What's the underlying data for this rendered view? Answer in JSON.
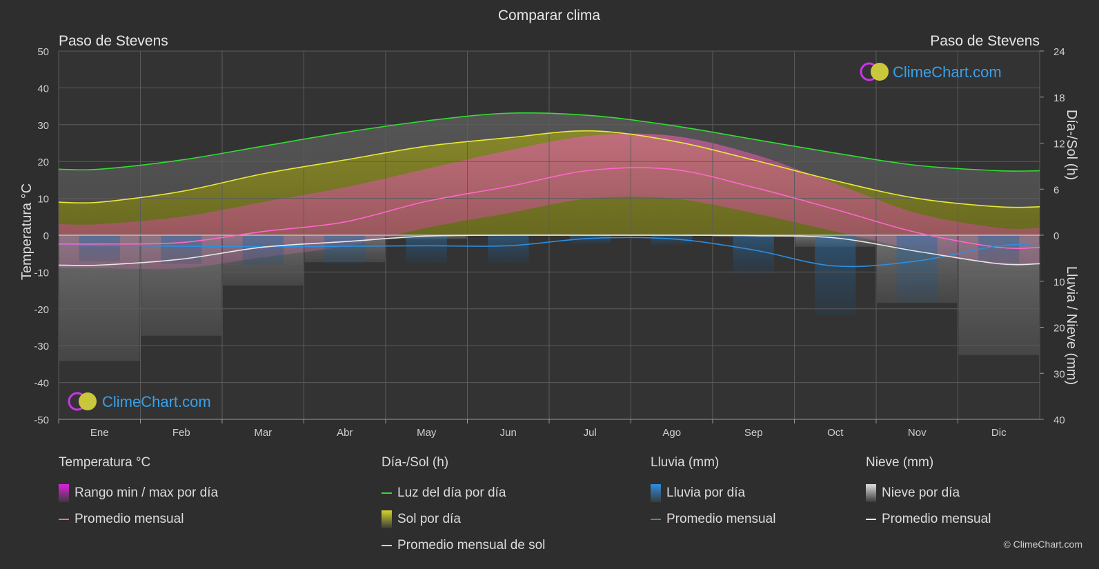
{
  "chart_data": {
    "type": "area",
    "title": "Comparar clima",
    "location_left": "Paso de Stevens",
    "location_right": "Paso de Stevens",
    "categories": [
      "Ene",
      "Feb",
      "Mar",
      "Abr",
      "May",
      "Jun",
      "Jul",
      "Ago",
      "Sep",
      "Oct",
      "Nov",
      "Dic"
    ],
    "y_left": {
      "label": "Temperatura °C",
      "range": [
        -50,
        50
      ],
      "ticks": [
        50,
        40,
        30,
        20,
        10,
        0,
        -10,
        -20,
        -30,
        -40,
        -50
      ]
    },
    "y_right_top": {
      "label": "Día-/Sol (h)",
      "range": [
        0,
        24
      ],
      "ticks": [
        24,
        18,
        12,
        6,
        0
      ]
    },
    "y_right_bottom": {
      "label": "Lluvia / Nieve (mm)",
      "range": [
        0,
        40
      ],
      "ticks": [
        10,
        20,
        30,
        40
      ]
    },
    "series": [
      {
        "name": "Luz del día por día",
        "axis": "daylight_h",
        "color": "#33dd33",
        "values": [
          8.6,
          9.8,
          11.6,
          13.4,
          14.9,
          15.9,
          15.6,
          14.3,
          12.5,
          10.7,
          9.1,
          8.4
        ]
      },
      {
        "name": "Promedio mensual de sol",
        "axis": "daylight_h",
        "color": "#e8e83a",
        "values": [
          4.3,
          5.7,
          8.0,
          9.8,
          11.6,
          12.7,
          13.6,
          12.3,
          9.8,
          7.1,
          4.8,
          3.7
        ]
      },
      {
        "name": "Promedio mensual",
        "group": "Temperatura °C",
        "axis": "temp_c",
        "color": "#ff66cc",
        "values": [
          -2.4,
          -2.0,
          1.0,
          3.6,
          9.2,
          13.2,
          17.6,
          17.9,
          13.0,
          7.0,
          0.7,
          -3.3
        ]
      },
      {
        "name": "Promedio mensual",
        "group": "Lluvia (mm)",
        "axis": "precip_mm",
        "color": "#2d8ee0",
        "values": [
          2.2,
          2.4,
          2.5,
          2.4,
          2.3,
          2.3,
          0.7,
          0.8,
          3.2,
          6.7,
          5.6,
          2.3
        ]
      },
      {
        "name": "Promedio mensual",
        "group": "Nieve (mm)",
        "axis": "precip_mm",
        "color": "#e8e8e8",
        "values": [
          6.5,
          5.2,
          2.6,
          1.4,
          0.2,
          0.0,
          0.0,
          0.0,
          0.1,
          0.6,
          3.5,
          6.2
        ]
      }
    ],
    "daily_range_temp": {
      "min": [
        -9,
        -9,
        -6,
        -3,
        2,
        6,
        10,
        10,
        6,
        1,
        -4,
        -8
      ],
      "max": [
        3,
        5,
        9,
        13,
        18,
        23,
        27,
        27,
        22,
        14,
        6,
        2
      ]
    },
    "grid": true
  },
  "brand": {
    "name": "ClimeChart.com",
    "copyright": "© ClimeChart.com"
  },
  "legend": {
    "groups": [
      {
        "title": "Temperatura °C",
        "items": [
          {
            "label": "Rango min / max por día",
            "kind": "box",
            "color": "#e020e0"
          },
          {
            "label": "Promedio mensual",
            "kind": "line",
            "color": "#ff66cc"
          }
        ]
      },
      {
        "title": "Día-/Sol (h)",
        "items": [
          {
            "label": "Luz del día por día",
            "kind": "line",
            "color": "#33dd33"
          },
          {
            "label": "Sol por día",
            "kind": "box",
            "color": "#d4d42a"
          },
          {
            "label": "Promedio mensual de sol",
            "kind": "line",
            "color": "#e8e83a"
          }
        ]
      },
      {
        "title": "Lluvia (mm)",
        "items": [
          {
            "label": "Lluvia por día",
            "kind": "box",
            "color": "#2d8ee0"
          },
          {
            "label": "Promedio mensual",
            "kind": "line",
            "color": "#2d8ee0"
          }
        ]
      },
      {
        "title": "Nieve (mm)",
        "items": [
          {
            "label": "Nieve por día",
            "kind": "box",
            "color": "#dddddd"
          },
          {
            "label": "Promedio mensual",
            "kind": "line",
            "color": "#ffffff"
          }
        ]
      }
    ]
  }
}
